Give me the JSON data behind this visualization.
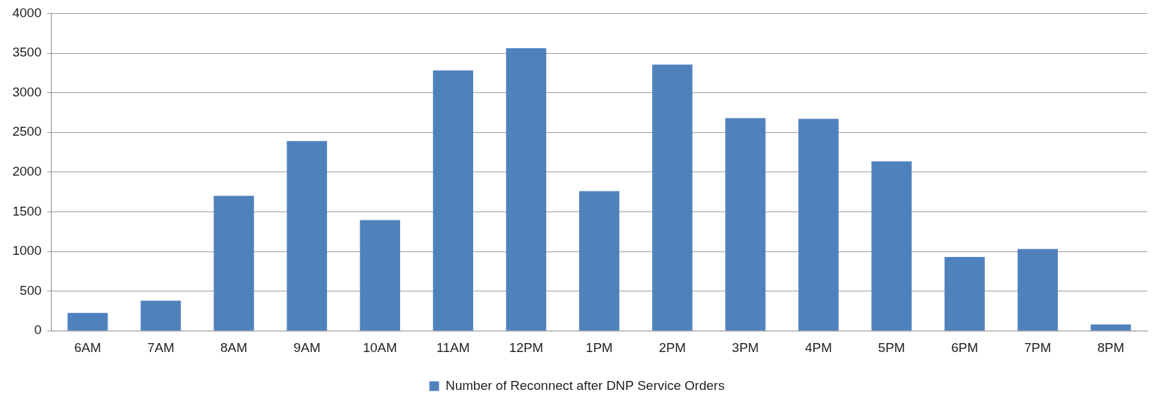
{
  "chart_data": {
    "type": "bar",
    "categories": [
      "6AM",
      "7AM",
      "8AM",
      "9AM",
      "10AM",
      "11AM",
      "12PM",
      "1PM",
      "2PM",
      "3PM",
      "4PM",
      "5PM",
      "6PM",
      "7PM",
      "8PM"
    ],
    "series": [
      {
        "name": "Number of Reconnect after DNP Service Orders",
        "color": "#4f81bd",
        "values": [
          225,
          380,
          1700,
          2390,
          1395,
          3280,
          3560,
          1760,
          3355,
          2680,
          2670,
          2135,
          930,
          1030,
          80
        ]
      }
    ],
    "ylim": [
      0,
      4000
    ],
    "yticks": [
      0,
      500,
      1000,
      1500,
      2000,
      2500,
      3000,
      3500,
      4000
    ],
    "grid": "y",
    "legend": "bottom"
  }
}
